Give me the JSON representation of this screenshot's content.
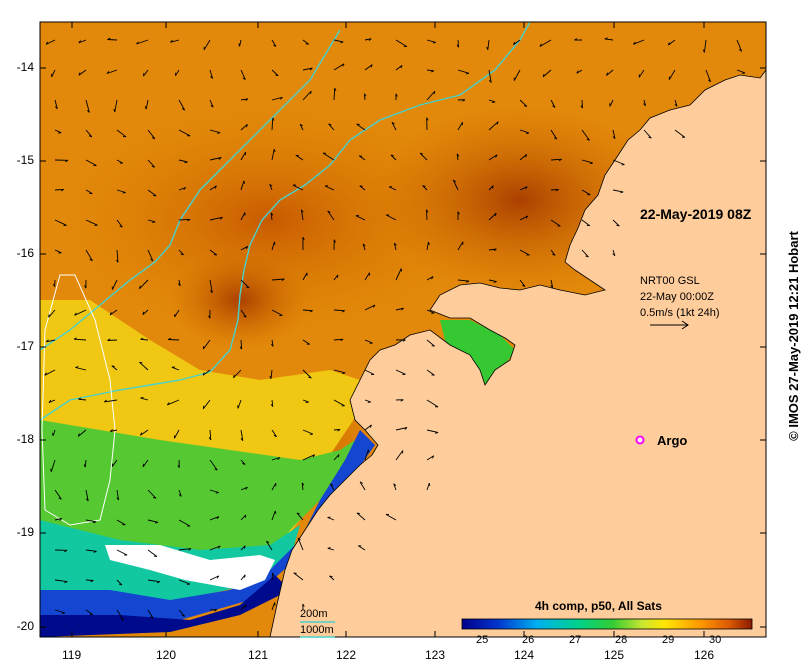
{
  "map": {
    "timestamp_label": "22-May-2019 08Z",
    "current_info": {
      "line1": "NRT00 GSL",
      "line2": "22-May 00:00Z",
      "line3": "0.5m/s (1kt 24h)"
    },
    "argo_label": "Argo",
    "bathymetry_legend": [
      "200m",
      "1000m"
    ],
    "colorbar": {
      "title": "4h comp, p50, All Sats",
      "ticks": [
        "25",
        "26",
        "27",
        "28",
        "29",
        "30"
      ],
      "range": [
        24.5,
        30.7
      ]
    },
    "copyright": "© IMOS 27-May-2019 12:21 Hobart",
    "lat_ticks": [
      "-14",
      "-15",
      "-16",
      "-17",
      "-18",
      "-19",
      "-20"
    ],
    "lon_ticks": [
      "119",
      "120",
      "121",
      "122",
      "123",
      "124",
      "125",
      "126"
    ],
    "colors": {
      "land": "#ffcd9b",
      "isobath": "#48d1cc",
      "argo_marker": "#ff00ff"
    }
  }
}
